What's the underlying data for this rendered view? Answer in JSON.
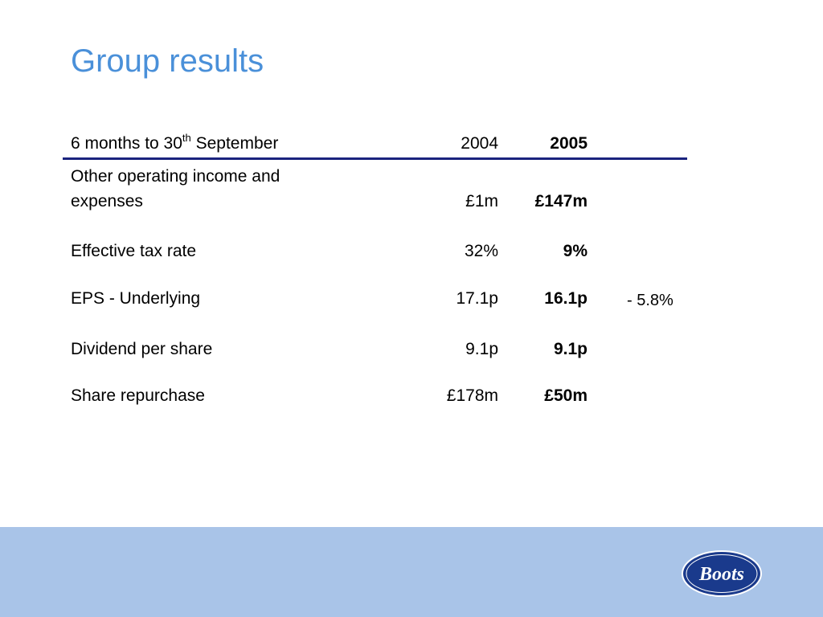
{
  "colors": {
    "title": "#4a90d9",
    "rule": "#1a237e",
    "footer": "#a9c4e8",
    "logo_fill": "#1a3a8c",
    "logo_text": "#ffffff"
  },
  "title": "Group results",
  "header": {
    "period_prefix": "6 months to 30",
    "period_superscript": "th",
    "period_suffix": " September",
    "col_2004": "2004",
    "col_2005": "2005"
  },
  "rows": [
    {
      "label_line1": "Other operating income and",
      "label_line2": "expenses",
      "v2004": "£1m",
      "v2005": "£147m",
      "change": ""
    },
    {
      "label": "Effective tax rate",
      "v2004": "32%",
      "v2005": "9%",
      "change": ""
    },
    {
      "label": "EPS - Underlying",
      "v2004": "17.1p",
      "v2005": "16.1p",
      "change": "- 5.8%"
    },
    {
      "label": "Dividend per share",
      "v2004": "9.1p",
      "v2005": "9.1p",
      "change": ""
    },
    {
      "label": "Share repurchase",
      "v2004": "£178m",
      "v2005": "£50m",
      "change": ""
    }
  ],
  "logo": {
    "text": "Boots",
    "icon": "boots-logo-icon"
  }
}
